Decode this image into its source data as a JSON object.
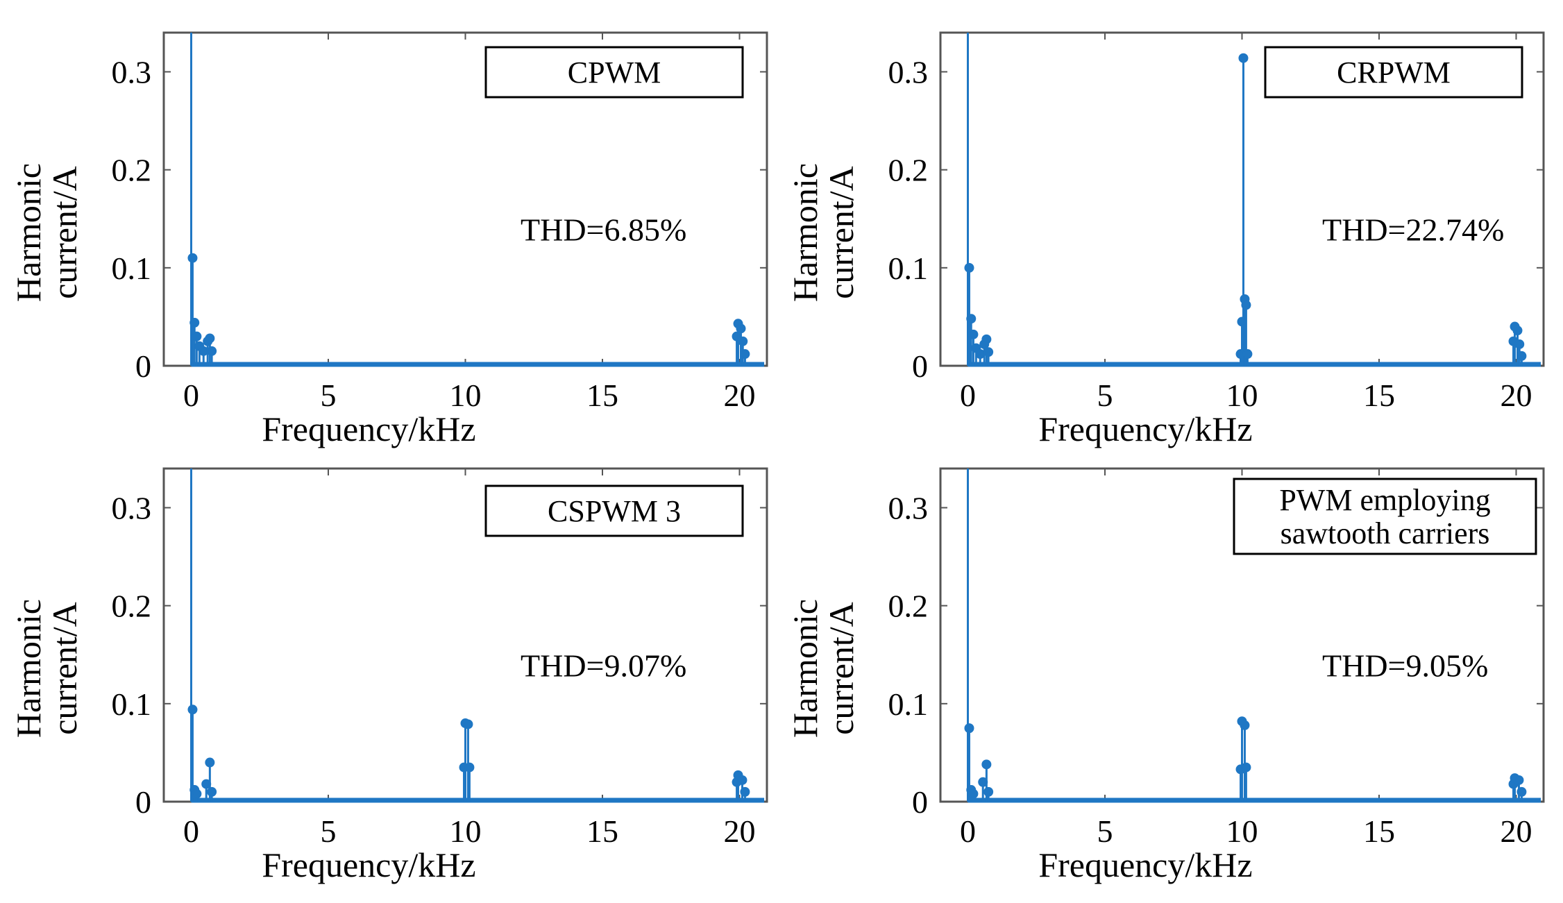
{
  "chart_data": [
    {
      "type": "stem",
      "title": "",
      "legend": "CPWM",
      "legend_lines": [
        "CPWM"
      ],
      "annotation": "THD=6.85%",
      "xlabel": "Frequency/kHz",
      "ylabel_lines": [
        "Harmonic",
        "current/A"
      ],
      "xlim": [
        -1,
        21
      ],
      "ylim": [
        0,
        0.34
      ],
      "xticks": [
        0,
        5,
        10,
        15,
        20
      ],
      "yticks": [
        0,
        0.1,
        0.2,
        0.3
      ],
      "xtick_labels": [
        "0",
        "5",
        "10",
        "15",
        "20"
      ],
      "ytick_labels": [
        "0",
        "0.1",
        "0.2",
        "0.3"
      ],
      "color": "#1f77c4",
      "points": [
        {
          "x": 0.0,
          "y": 0.34
        },
        {
          "x": 0.05,
          "y": 0.11
        },
        {
          "x": 0.12,
          "y": 0.044
        },
        {
          "x": 0.2,
          "y": 0.03
        },
        {
          "x": 0.3,
          "y": 0.02
        },
        {
          "x": 0.45,
          "y": 0.015
        },
        {
          "x": 0.6,
          "y": 0.025
        },
        {
          "x": 0.68,
          "y": 0.028
        },
        {
          "x": 0.75,
          "y": 0.015
        },
        {
          "x": 19.9,
          "y": 0.03
        },
        {
          "x": 19.95,
          "y": 0.043
        },
        {
          "x": 20.05,
          "y": 0.038
        },
        {
          "x": 20.12,
          "y": 0.025
        },
        {
          "x": 20.2,
          "y": 0.012
        }
      ]
    },
    {
      "type": "stem",
      "title": "",
      "legend": "CRPWM",
      "legend_lines": [
        "CRPWM"
      ],
      "annotation": "THD=22.74%",
      "xlabel": "Frequency/kHz",
      "ylabel_lines": [
        "Harmonic",
        "current/A"
      ],
      "xlim": [
        -1,
        21
      ],
      "ylim": [
        0,
        0.34
      ],
      "xticks": [
        0,
        5,
        10,
        15,
        20
      ],
      "yticks": [
        0,
        0.1,
        0.2,
        0.3
      ],
      "xtick_labels": [
        "0",
        "5",
        "10",
        "15",
        "20"
      ],
      "ytick_labels": [
        "0",
        "0.1",
        "0.2",
        "0.3"
      ],
      "color": "#1f77c4",
      "points": [
        {
          "x": 0.0,
          "y": 0.34
        },
        {
          "x": 0.05,
          "y": 0.1
        },
        {
          "x": 0.12,
          "y": 0.048
        },
        {
          "x": 0.2,
          "y": 0.032
        },
        {
          "x": 0.3,
          "y": 0.018
        },
        {
          "x": 0.45,
          "y": 0.012
        },
        {
          "x": 0.6,
          "y": 0.022
        },
        {
          "x": 0.68,
          "y": 0.027
        },
        {
          "x": 0.75,
          "y": 0.014
        },
        {
          "x": 9.95,
          "y": 0.012
        },
        {
          "x": 10.0,
          "y": 0.045
        },
        {
          "x": 10.05,
          "y": 0.314
        },
        {
          "x": 10.1,
          "y": 0.068
        },
        {
          "x": 10.15,
          "y": 0.062
        },
        {
          "x": 10.2,
          "y": 0.012
        },
        {
          "x": 19.9,
          "y": 0.025
        },
        {
          "x": 19.95,
          "y": 0.04
        },
        {
          "x": 20.05,
          "y": 0.036
        },
        {
          "x": 20.12,
          "y": 0.022
        },
        {
          "x": 20.2,
          "y": 0.01
        }
      ]
    },
    {
      "type": "stem",
      "title": "",
      "legend": "CSPWM 3",
      "legend_lines": [
        "CSPWM 3"
      ],
      "annotation": "THD=9.07%",
      "xlabel": "Frequency/kHz",
      "ylabel_lines": [
        "Harmonic",
        "current/A"
      ],
      "xlim": [
        -1,
        21
      ],
      "ylim": [
        0,
        0.34
      ],
      "xticks": [
        0,
        5,
        10,
        15,
        20
      ],
      "yticks": [
        0,
        0.1,
        0.2,
        0.3
      ],
      "xtick_labels": [
        "0",
        "5",
        "10",
        "15",
        "20"
      ],
      "ytick_labels": [
        "0",
        "0.1",
        "0.2",
        "0.3"
      ],
      "color": "#1f77c4",
      "points": [
        {
          "x": 0.0,
          "y": 0.34
        },
        {
          "x": 0.05,
          "y": 0.094
        },
        {
          "x": 0.12,
          "y": 0.012
        },
        {
          "x": 0.2,
          "y": 0.008
        },
        {
          "x": 0.55,
          "y": 0.018
        },
        {
          "x": 0.68,
          "y": 0.04
        },
        {
          "x": 0.75,
          "y": 0.01
        },
        {
          "x": 9.95,
          "y": 0.035
        },
        {
          "x": 10.0,
          "y": 0.08
        },
        {
          "x": 10.1,
          "y": 0.079
        },
        {
          "x": 10.15,
          "y": 0.035
        },
        {
          "x": 19.9,
          "y": 0.02
        },
        {
          "x": 19.95,
          "y": 0.027
        },
        {
          "x": 20.1,
          "y": 0.022
        },
        {
          "x": 20.2,
          "y": 0.01
        }
      ]
    },
    {
      "type": "stem",
      "title": "",
      "legend": "PWM employing sawtooth carriers",
      "legend_lines": [
        "PWM employing",
        "sawtooth carriers"
      ],
      "annotation": "THD=9.05%",
      "xlabel": "Frequency/kHz",
      "ylabel_lines": [
        "Harmonic",
        "current/A"
      ],
      "xlim": [
        -1,
        21
      ],
      "ylim": [
        0,
        0.34
      ],
      "xticks": [
        0,
        5,
        10,
        15,
        20
      ],
      "yticks": [
        0,
        0.1,
        0.2,
        0.3
      ],
      "xtick_labels": [
        "0",
        "5",
        "10",
        "15",
        "20"
      ],
      "ytick_labels": [
        "0",
        "0.1",
        "0.2",
        "0.3"
      ],
      "color": "#1f77c4",
      "points": [
        {
          "x": 0.0,
          "y": 0.34
        },
        {
          "x": 0.05,
          "y": 0.075
        },
        {
          "x": 0.12,
          "y": 0.012
        },
        {
          "x": 0.2,
          "y": 0.008
        },
        {
          "x": 0.55,
          "y": 0.02
        },
        {
          "x": 0.68,
          "y": 0.038
        },
        {
          "x": 0.75,
          "y": 0.01
        },
        {
          "x": 9.95,
          "y": 0.033
        },
        {
          "x": 10.0,
          "y": 0.082
        },
        {
          "x": 10.1,
          "y": 0.078
        },
        {
          "x": 10.15,
          "y": 0.035
        },
        {
          "x": 19.9,
          "y": 0.018
        },
        {
          "x": 19.95,
          "y": 0.024
        },
        {
          "x": 20.1,
          "y": 0.022
        },
        {
          "x": 20.2,
          "y": 0.01
        }
      ]
    }
  ]
}
